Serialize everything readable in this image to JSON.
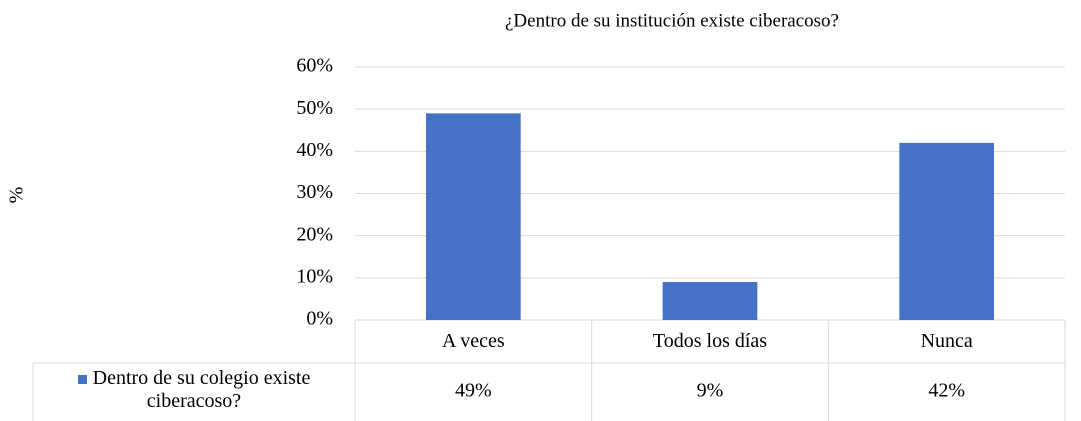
{
  "chart_data": {
    "type": "bar",
    "title": "¿Dentro de su institución existe ciberacoso?",
    "y_label": "%",
    "categories": [
      "A veces",
      "Todos los días",
      "Nunca"
    ],
    "series": [
      {
        "name": "Dentro de su colegio existe ciberacoso?",
        "color": "#4472c4",
        "values": [
          49,
          9,
          42
        ],
        "value_labels": [
          "49%",
          "9%",
          "42%"
        ]
      }
    ],
    "ylim": [
      0,
      60
    ],
    "yticks": [
      {
        "value": 0,
        "label": "0%"
      },
      {
        "value": 10,
        "label": "10%"
      },
      {
        "value": 20,
        "label": "20%"
      },
      {
        "value": 30,
        "label": "30%"
      },
      {
        "value": 40,
        "label": "40%"
      },
      {
        "value": 50,
        "label": "50%"
      },
      {
        "value": 60,
        "label": "60%"
      }
    ],
    "grid": true
  }
}
